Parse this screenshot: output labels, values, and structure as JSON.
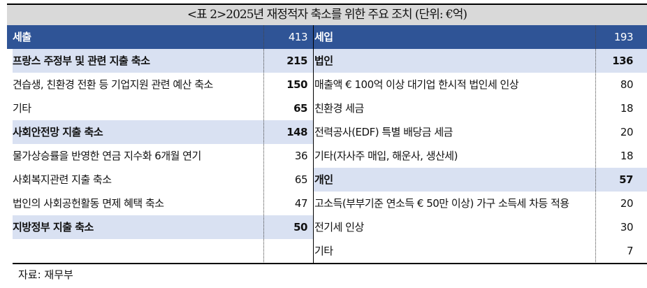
{
  "title": "<표 2>2025년 재정적자 축소를 위한 주요 조치 (단위: €억)",
  "header": {
    "left_label": "세출",
    "left_value": "413",
    "right_label": "세입",
    "right_value": "193"
  },
  "left_rows": [
    {
      "label": "프랑스 주정부 및 관련 지출 축소",
      "value": "215",
      "bold": true,
      "highlight": true
    },
    {
      "label": "견습생, 친환경 전환 등 기업지원 관련 예산 축소",
      "value": "150",
      "bold": false,
      "value_bold": true
    },
    {
      "label": "기타",
      "value": "65",
      "bold": false,
      "value_bold": true
    },
    {
      "label": "사회안전망 지출 축소",
      "value": "148",
      "bold": true,
      "highlight": true
    },
    {
      "label": "물가상승률을 반영한 연금 지수화 6개월 연기",
      "value": "36",
      "bold": false
    },
    {
      "label": "사회복지관련 지출 축소",
      "value": "65",
      "bold": false
    },
    {
      "label": "법인의 사회공헌활동 면제 혜택 축소",
      "value": "47",
      "bold": false
    },
    {
      "label": "지방정부 지출 축소",
      "value": "50",
      "bold": true,
      "highlight": true
    },
    {
      "label": "",
      "value": ""
    }
  ],
  "right_rows": [
    {
      "label": "법인",
      "value": "136",
      "bold": true,
      "highlight": true
    },
    {
      "label": "매출액 € 100억 이상 대기업 한시적 법인세 인상",
      "value": "80"
    },
    {
      "label": "친환경 세금",
      "value": "18"
    },
    {
      "label": "전력공사(EDF) 특별 배당금 세금",
      "value": "20"
    },
    {
      "label": "기타(자사주 매입, 해운사, 생산세)",
      "value": "18"
    },
    {
      "label": "개인",
      "value": "57",
      "bold": true,
      "highlight": true
    },
    {
      "label": "고소득(부부기준 연소득 € 50만 이상) 가구 소득세 차등 적용",
      "value": "20"
    },
    {
      "label": "전기세 인상",
      "value": "30"
    },
    {
      "label": "기타",
      "value": "7"
    }
  ],
  "source": "자료: 재무부",
  "colors": {
    "header_bg": "#2f5496",
    "highlight_bg": "#d9e1f2",
    "title_bg": "#d9d9d9"
  }
}
